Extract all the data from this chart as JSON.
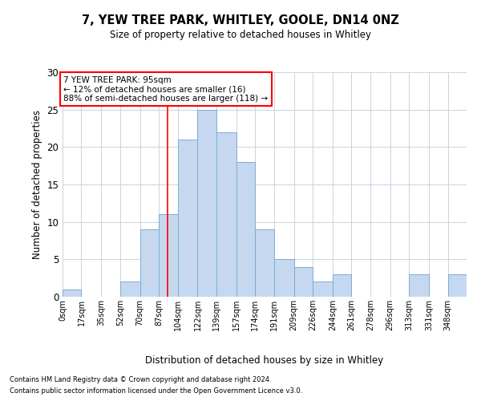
{
  "title1": "7, YEW TREE PARK, WHITLEY, GOOLE, DN14 0NZ",
  "title2": "Size of property relative to detached houses in Whitley",
  "xlabel": "Distribution of detached houses by size in Whitley",
  "ylabel": "Number of detached properties",
  "bin_labels": [
    "0sqm",
    "17sqm",
    "35sqm",
    "52sqm",
    "70sqm",
    "87sqm",
    "104sqm",
    "122sqm",
    "139sqm",
    "157sqm",
    "174sqm",
    "191sqm",
    "209sqm",
    "226sqm",
    "244sqm",
    "261sqm",
    "278sqm",
    "296sqm",
    "313sqm",
    "331sqm",
    "348sqm"
  ],
  "bin_edges": [
    0,
    17,
    35,
    52,
    70,
    87,
    104,
    122,
    139,
    157,
    174,
    191,
    209,
    226,
    244,
    261,
    278,
    296,
    313,
    331,
    348,
    365
  ],
  "values": [
    1,
    0,
    0,
    2,
    9,
    11,
    21,
    25,
    22,
    18,
    9,
    5,
    4,
    2,
    3,
    0,
    0,
    0,
    3,
    0,
    3
  ],
  "bar_color": "#c5d8f0",
  "bar_edge_color": "#7aadd4",
  "redline_x": 95,
  "ylim": [
    0,
    30
  ],
  "yticks": [
    0,
    5,
    10,
    15,
    20,
    25,
    30
  ],
  "annotation_line1": "7 YEW TREE PARK: 95sqm",
  "annotation_line2": "← 12% of detached houses are smaller (16)",
  "annotation_line3": "88% of semi-detached houses are larger (118) →",
  "footnote1": "Contains HM Land Registry data © Crown copyright and database right 2024.",
  "footnote2": "Contains public sector information licensed under the Open Government Licence v3.0.",
  "bg_color": "#ffffff",
  "grid_color": "#c8d4e0"
}
